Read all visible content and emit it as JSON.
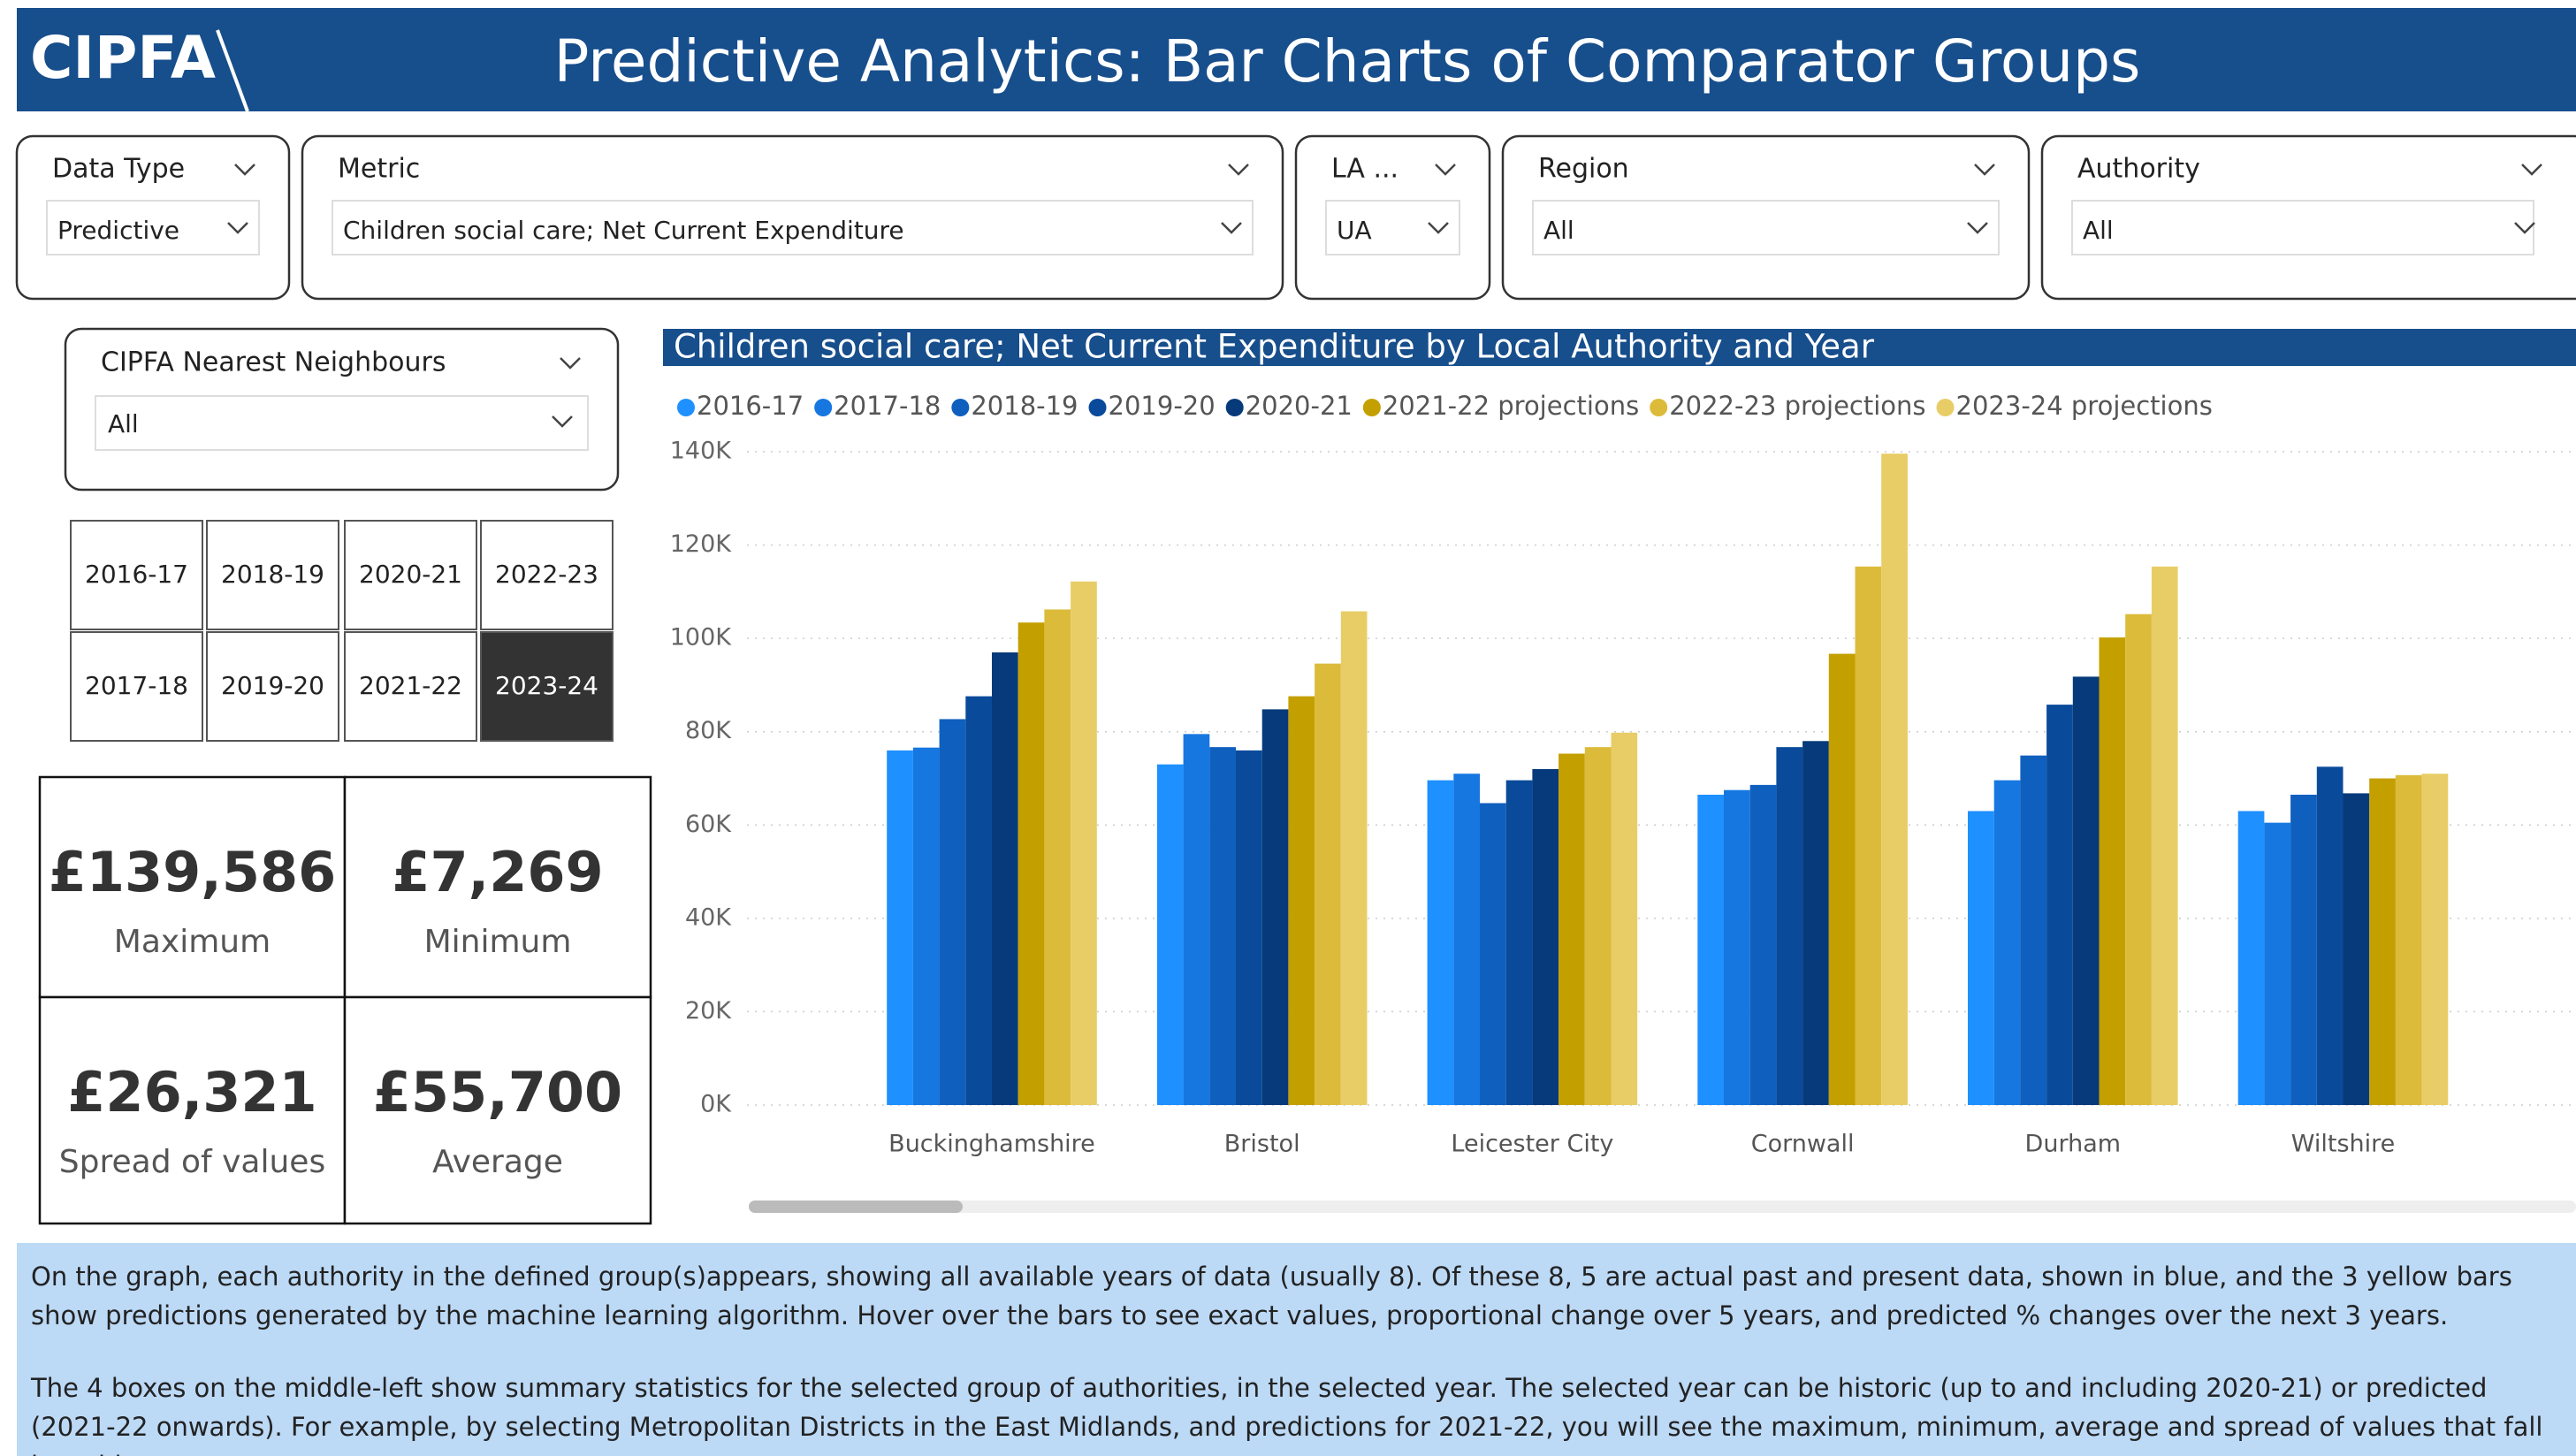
{
  "header": {
    "logo": "CIPFA",
    "title": "Predictive Analytics: Bar Charts of Comparator Groups"
  },
  "filters": [
    {
      "label": "Data Type",
      "value": "Predictive"
    },
    {
      "label": "Metric",
      "value": "Children social care; Net Current Expenditure"
    },
    {
      "label": "LA ...",
      "value": "UA"
    },
    {
      "label": "Region",
      "value": "All"
    },
    {
      "label": "Authority",
      "value": "All"
    }
  ],
  "neighbours": {
    "label": "CIPFA Nearest Neighbours",
    "value": "All"
  },
  "year_buttons": [
    {
      "label": "2016-17",
      "selected": false
    },
    {
      "label": "2018-19",
      "selected": false
    },
    {
      "label": "2020-21",
      "selected": false
    },
    {
      "label": "2022-23",
      "selected": false
    },
    {
      "label": "2017-18",
      "selected": false
    },
    {
      "label": "2019-20",
      "selected": false
    },
    {
      "label": "2021-22",
      "selected": false
    },
    {
      "label": "2023-24",
      "selected": true
    }
  ],
  "stats": [
    {
      "value": "£139,586",
      "label": "Maximum"
    },
    {
      "value": "£7,269",
      "label": "Minimum"
    },
    {
      "value": "£26,321",
      "label": "Spread of values"
    },
    {
      "value": "£55,700",
      "label": "Average"
    }
  ],
  "chart_data": {
    "type": "bar",
    "title": "Children social care; Net Current Expenditure by Local Authority and Year",
    "categories": [
      "Buckinghamshire",
      "Bristol",
      "Leicester City",
      "Cornwall",
      "Durham",
      "Wiltshire"
    ],
    "series": [
      {
        "name": "2016-17",
        "color": "#1e90ff",
        "values": [
          76000,
          73000,
          69600,
          66500,
          63000,
          63000
        ]
      },
      {
        "name": "2017-18",
        "color": "#1677e0",
        "values": [
          76600,
          79500,
          71000,
          67500,
          69600,
          60500
        ]
      },
      {
        "name": "2018-19",
        "color": "#0f5fbf",
        "values": [
          82700,
          76700,
          64700,
          68600,
          74900,
          66500
        ]
      },
      {
        "name": "2019-20",
        "color": "#0a4a9a",
        "values": [
          87600,
          76000,
          69600,
          76700,
          85800,
          72500
        ]
      },
      {
        "name": "2020-21",
        "color": "#073a7a",
        "values": [
          97000,
          84800,
          72000,
          78000,
          91800,
          66800
        ]
      },
      {
        "name": "2021-22 projections",
        "color": "#c49f00",
        "values": [
          103400,
          87600,
          75300,
          96700,
          100200,
          70000
        ]
      },
      {
        "name": "2022-23 projections",
        "color": "#dcbb3a",
        "values": [
          106200,
          94600,
          76700,
          115400,
          105200,
          70700
        ]
      },
      {
        "name": "2023-24 projections",
        "color": "#e8cd66",
        "values": [
          112200,
          105800,
          79800,
          139586,
          115400,
          71000
        ]
      }
    ],
    "ylim": [
      0,
      140000
    ],
    "yticks": [
      {
        "value": 0,
        "label": "0K"
      },
      {
        "value": 20000,
        "label": "20K"
      },
      {
        "value": 40000,
        "label": "40K"
      },
      {
        "value": 60000,
        "label": "60K"
      },
      {
        "value": 80000,
        "label": "80K"
      },
      {
        "value": 100000,
        "label": "100K"
      },
      {
        "value": 120000,
        "label": "120K"
      },
      {
        "value": 140000,
        "label": "140K"
      }
    ],
    "grid": true,
    "legend": "top"
  },
  "notes": [
    "On the graph, each authority in the defined group(s)appears, showing all available years of data (usually 8). Of these 8, 5 are actual past and present data, shown in blue, and the 3 yellow bars show predictions generated by the machine learning algorithm. Hover over the bars to see exact values, proportional change over 5 years, and predicted % changes over the next 3 years.",
    "The 4 boxes on the middle-left show summary statistics for the selected group of authorities, in the selected year. The selected year can be historic (up to and including 2020-21) or predicted (2021-22 onwards). For example, by selecting Metropolitan Districts in the East Midlands, and predictions for 2021-22, you will see the maximum, minimum, average and spread of values that fall into this category."
  ]
}
